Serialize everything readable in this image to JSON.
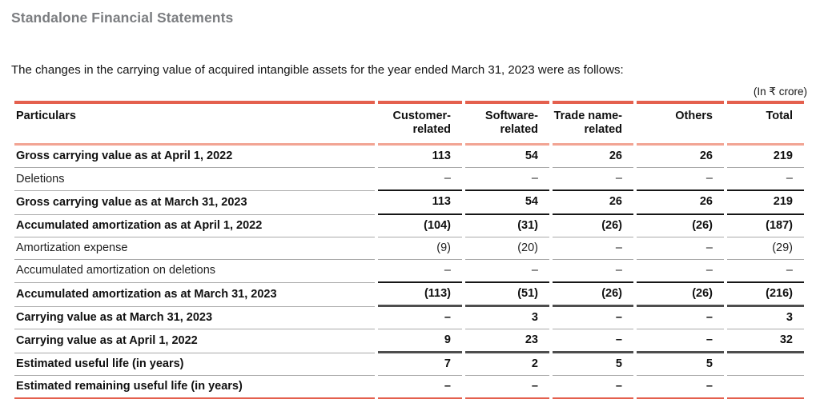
{
  "page": {
    "title": "Standalone Financial Statements",
    "intro": "The changes in the carrying value of acquired intangible assets for the year ended March 31, 2023 were as follows:",
    "unit_note": "(In ₹ crore)"
  },
  "table": {
    "columns": [
      "Particulars",
      "Customer-related",
      "Software-related",
      "Trade name-related",
      "Others",
      "Total"
    ],
    "rows": [
      {
        "label": "Gross carrying value as at April 1, 2022",
        "bold": true,
        "rule": "gray",
        "values": [
          "113",
          "54",
          "26",
          "26",
          "219"
        ]
      },
      {
        "label": "Deletions",
        "bold": false,
        "rule": "black",
        "values": [
          "–",
          "–",
          "–",
          "–",
          "–"
        ]
      },
      {
        "label": "Gross carrying value as at March 31, 2023",
        "bold": true,
        "rule": "black",
        "values": [
          "113",
          "54",
          "26",
          "26",
          "219"
        ]
      },
      {
        "label": "Accumulated amortization as at April 1, 2022",
        "bold": true,
        "rule": "gray",
        "values": [
          "(104)",
          "(31)",
          "(26)",
          "(26)",
          "(187)"
        ]
      },
      {
        "label": "Amortization expense",
        "bold": false,
        "rule": "gray",
        "values": [
          "(9)",
          "(20)",
          "–",
          "–",
          "(29)"
        ]
      },
      {
        "label": "Accumulated amortization on deletions",
        "bold": false,
        "rule": "black",
        "values": [
          "–",
          "–",
          "–",
          "–",
          "–"
        ]
      },
      {
        "label": "Accumulated amortization as at March 31, 2023",
        "bold": true,
        "rule": "dark",
        "values": [
          "(113)",
          "(51)",
          "(26)",
          "(26)",
          "(216)"
        ]
      },
      {
        "label": "Carrying value as at March 31, 2023",
        "bold": true,
        "rule": "gray",
        "values": [
          "–",
          "3",
          "–",
          "–",
          "3"
        ]
      },
      {
        "label": "Carrying value as at April 1, 2022",
        "bold": true,
        "rule": "dark",
        "values": [
          "9",
          "23",
          "–",
          "–",
          "32"
        ]
      },
      {
        "label": "Estimated useful life (in years)",
        "bold": true,
        "rule": "gray",
        "values": [
          "7",
          "2",
          "5",
          "5",
          ""
        ]
      },
      {
        "label": "Estimated remaining useful life (in years)",
        "bold": true,
        "rule": "red",
        "values": [
          "–",
          "–",
          "–",
          "–",
          ""
        ]
      }
    ]
  },
  "colors": {
    "accent-red": "#e4604e",
    "salmon": "#f2a493",
    "rule-gray": "#a9a9a9",
    "rule-black": "#161616",
    "rule-dark": "#4d4d4d",
    "title-gray": "#7b7d80",
    "text": "#1a1a1a"
  }
}
